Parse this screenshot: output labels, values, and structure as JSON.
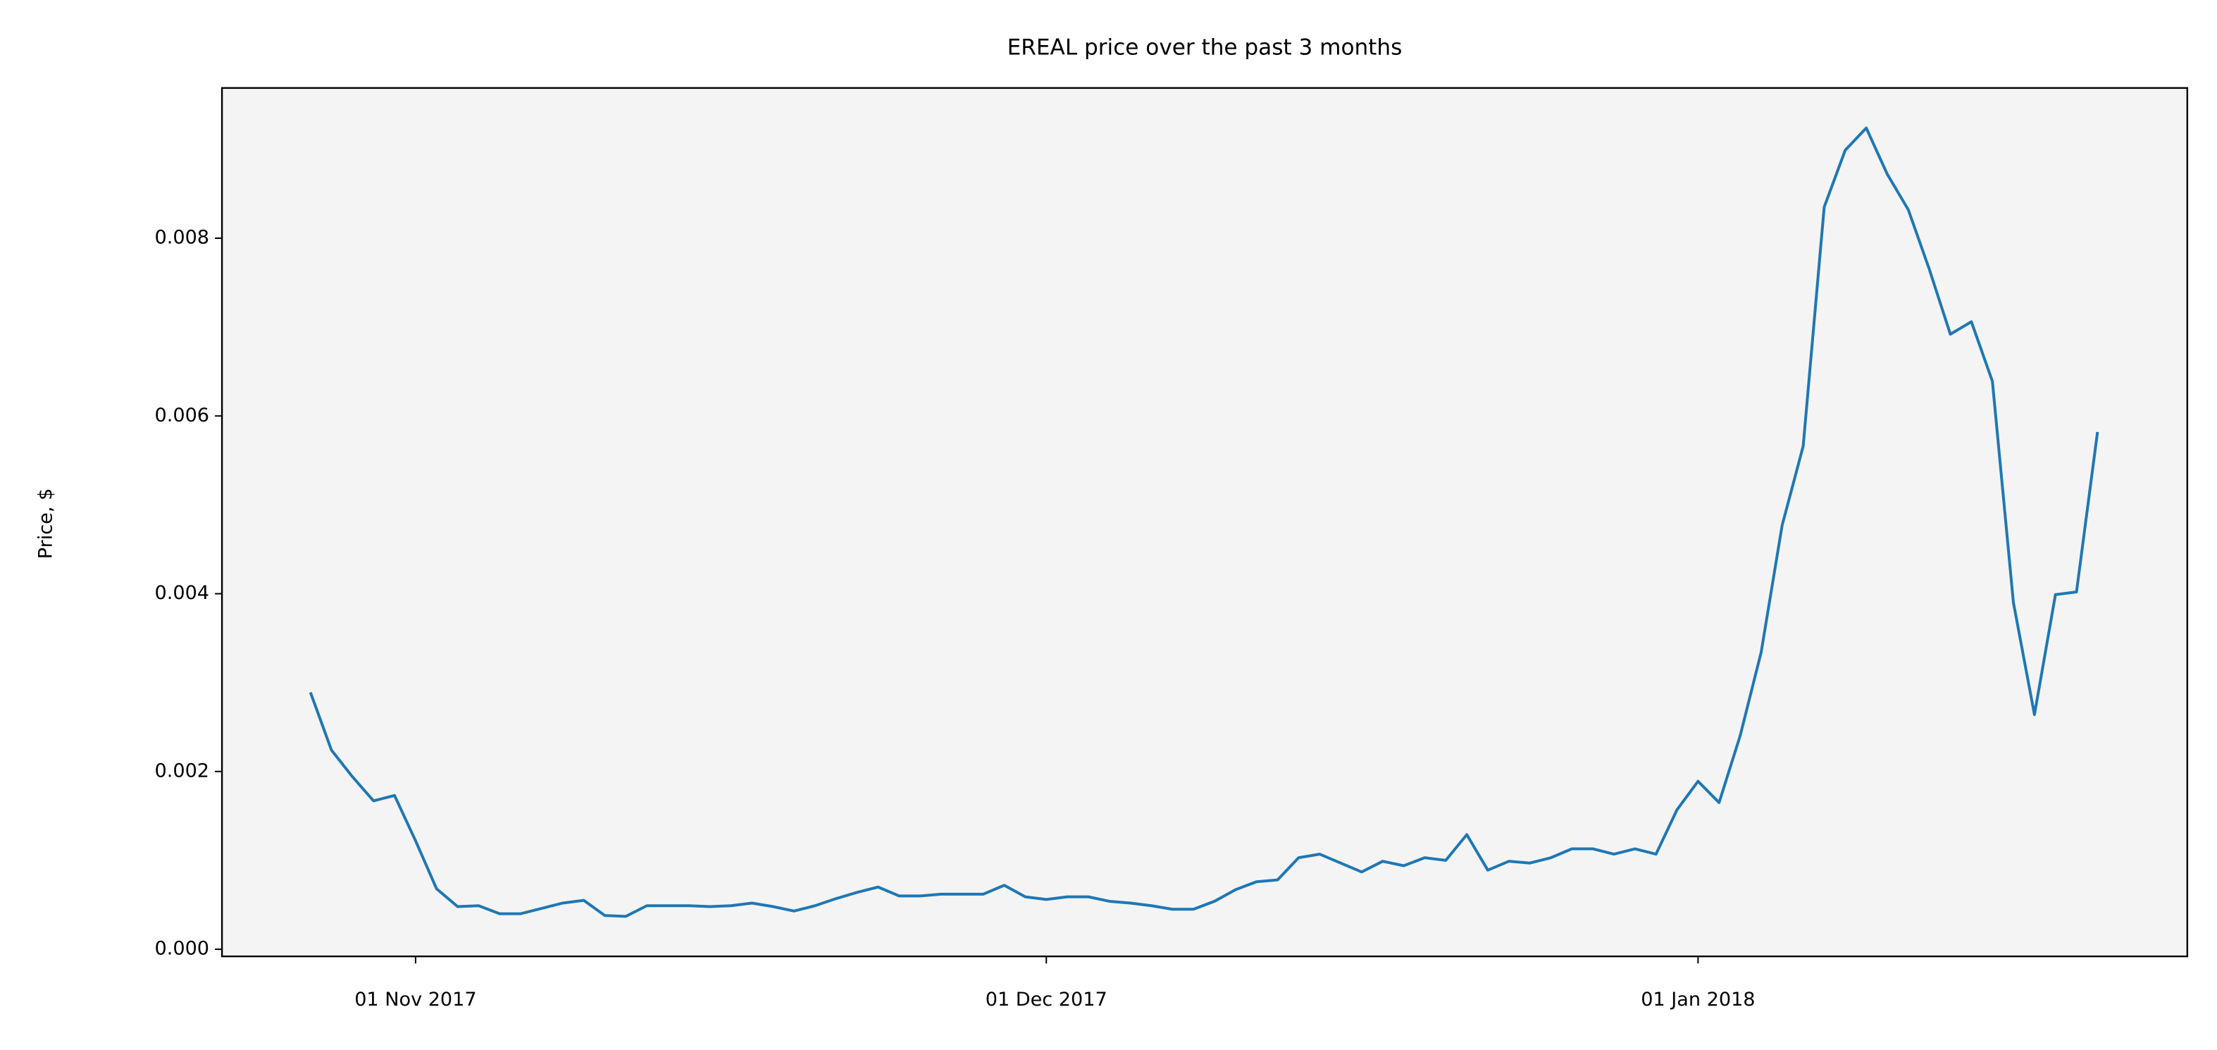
{
  "chart_data": {
    "type": "line",
    "title": "EREAL price over the past 3 months",
    "y_label": "Price, $",
    "x": [
      "2017-10-27",
      "2017-10-28",
      "2017-10-29",
      "2017-10-30",
      "2017-10-31",
      "2017-11-01",
      "2017-11-02",
      "2017-11-03",
      "2017-11-04",
      "2017-11-05",
      "2017-11-06",
      "2017-11-07",
      "2017-11-08",
      "2017-11-09",
      "2017-11-10",
      "2017-11-11",
      "2017-11-12",
      "2017-11-13",
      "2017-11-14",
      "2017-11-15",
      "2017-11-16",
      "2017-11-17",
      "2017-11-18",
      "2017-11-19",
      "2017-11-20",
      "2017-11-21",
      "2017-11-22",
      "2017-11-23",
      "2017-11-24",
      "2017-11-25",
      "2017-11-26",
      "2017-11-27",
      "2017-11-28",
      "2017-11-29",
      "2017-11-30",
      "2017-12-01",
      "2017-12-02",
      "2017-12-03",
      "2017-12-04",
      "2017-12-05",
      "2017-12-06",
      "2017-12-07",
      "2017-12-08",
      "2017-12-09",
      "2017-12-10",
      "2017-12-11",
      "2017-12-12",
      "2017-12-13",
      "2017-12-14",
      "2017-12-15",
      "2017-12-16",
      "2017-12-17",
      "2017-12-18",
      "2017-12-19",
      "2017-12-20",
      "2017-12-21",
      "2017-12-22",
      "2017-12-23",
      "2017-12-24",
      "2017-12-25",
      "2017-12-26",
      "2017-12-27",
      "2017-12-28",
      "2017-12-29",
      "2017-12-30",
      "2017-12-31",
      "2018-01-01",
      "2018-01-02",
      "2018-01-03",
      "2018-01-04",
      "2018-01-05",
      "2018-01-06",
      "2018-01-07",
      "2018-01-08",
      "2018-01-09",
      "2018-01-10",
      "2018-01-11",
      "2018-01-12",
      "2018-01-13",
      "2018-01-14",
      "2018-01-15",
      "2018-01-16",
      "2018-01-17",
      "2018-01-18",
      "2018-01-19",
      "2018-01-20"
    ],
    "series": [
      {
        "name": "EREAL",
        "color": "#1f77b4",
        "values": [
          0.00289,
          0.00224,
          0.00194,
          0.00167,
          0.00173,
          0.00122,
          0.00068,
          0.00048,
          0.00049,
          0.0004,
          0.0004,
          0.00046,
          0.00052,
          0.00055,
          0.00038,
          0.00037,
          0.00049,
          0.00049,
          0.00049,
          0.00048,
          0.00049,
          0.00052,
          0.00048,
          0.00043,
          0.00049,
          0.00057,
          0.00064,
          0.0007,
          0.0006,
          0.0006,
          0.00062,
          0.00062,
          0.00062,
          0.00072,
          0.00059,
          0.00056,
          0.00059,
          0.00059,
          0.00054,
          0.00052,
          0.00049,
          0.00045,
          0.00045,
          0.00054,
          0.00067,
          0.00076,
          0.00078,
          0.00103,
          0.00107,
          0.00097,
          0.00087,
          0.00099,
          0.00094,
          0.00103,
          0.001,
          0.00129,
          0.00089,
          0.00099,
          0.00097,
          0.00103,
          0.00113,
          0.00113,
          0.00107,
          0.00113,
          0.00107,
          0.00157,
          0.00189,
          0.00165,
          0.0024,
          0.00334,
          0.00477,
          0.00566,
          0.00835,
          0.00899,
          0.00924,
          0.00872,
          0.00832,
          0.00765,
          0.00692,
          0.00706,
          0.00639,
          0.0039,
          0.00264,
          0.00399,
          0.00402,
          0.00582
        ]
      }
    ],
    "xlim": [
      "2017-10-22T19:00",
      "2018-01-24T06:30"
    ],
    "xticks": [
      {
        "value": "2017-11-01",
        "label": "01 Nov 2017"
      },
      {
        "value": "2017-12-01",
        "label": "01 Dec 2017"
      },
      {
        "value": "2018-01-01",
        "label": "01 Jan 2018"
      }
    ],
    "ylim": [
      -8e-05,
      0.00969
    ],
    "yticks": [
      {
        "value": 0,
        "label": "0.000"
      },
      {
        "value": 0.002,
        "label": "0.002"
      },
      {
        "value": 0.004,
        "label": "0.004"
      },
      {
        "value": 0.006,
        "label": "0.006"
      },
      {
        "value": 0.008,
        "label": "0.008"
      }
    ],
    "background": "#f4f4f4"
  }
}
